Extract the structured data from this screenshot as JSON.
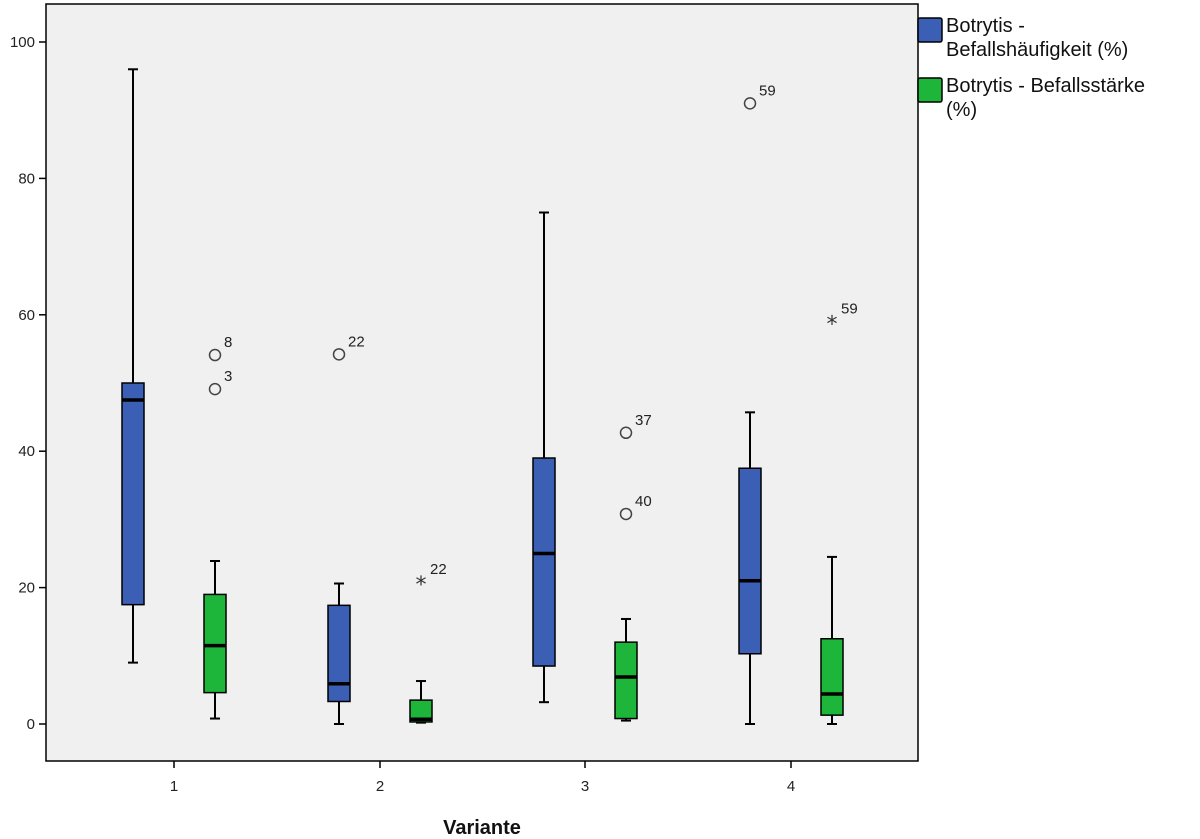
{
  "chart_data": {
    "type": "boxplot",
    "title": "",
    "xlabel": "Variante",
    "ylabel": "",
    "ylim": [
      -5,
      105
    ],
    "yticks": [
      0,
      20,
      40,
      60,
      80,
      100
    ],
    "categories": [
      "1",
      "2",
      "3",
      "4"
    ],
    "legend_position": "right-top",
    "series": [
      {
        "name": "Botrytis - Befallshäufigkeit (%)",
        "legend_lines": [
          "Botrytis -",
          "Befallshäufigkeit (%)"
        ],
        "color": "#3A5FB4",
        "boxes": [
          {
            "category": "1",
            "whisker_low": 9,
            "q1": 17.5,
            "median": 47.5,
            "q3": 50,
            "whisker_high": 96,
            "outliers": []
          },
          {
            "category": "2",
            "whisker_low": 0,
            "q1": 3.3,
            "median": 5.9,
            "q3": 17.4,
            "whisker_high": 20.6,
            "outliers": [
              {
                "value": 54.2,
                "label": "22",
                "marker": "circle"
              }
            ]
          },
          {
            "category": "3",
            "whisker_low": 3.2,
            "q1": 8.5,
            "median": 25,
            "q3": 39,
            "whisker_high": 75,
            "outliers": []
          },
          {
            "category": "4",
            "whisker_low": 0,
            "q1": 10.3,
            "median": 21,
            "q3": 37.5,
            "whisker_high": 45.7,
            "outliers": [
              {
                "value": 91,
                "label": "59",
                "marker": "circle"
              }
            ]
          }
        ]
      },
      {
        "name": "Botrytis - Befallsstärke (%)",
        "legend_lines": [
          "Botrytis - Befallsstärke",
          "(%)"
        ],
        "color": "#1DB53A",
        "boxes": [
          {
            "category": "1",
            "whisker_low": 0.8,
            "q1": 4.6,
            "median": 11.5,
            "q3": 19,
            "whisker_high": 23.9,
            "outliers": [
              {
                "value": 54.1,
                "label": "8",
                "marker": "circle"
              },
              {
                "value": 49.1,
                "label": "3",
                "marker": "circle"
              }
            ]
          },
          {
            "category": "2",
            "whisker_low": 0.2,
            "q1": 0.3,
            "median": 0.7,
            "q3": 3.5,
            "whisker_high": 6.3,
            "outliers": [
              {
                "value": 20.8,
                "label": "22",
                "marker": "star"
              }
            ]
          },
          {
            "category": "3",
            "whisker_low": 0.5,
            "q1": 0.8,
            "median": 6.9,
            "q3": 12,
            "whisker_high": 15.4,
            "outliers": [
              {
                "value": 42.7,
                "label": "37",
                "marker": "circle"
              },
              {
                "value": 30.8,
                "label": "40",
                "marker": "circle"
              }
            ]
          },
          {
            "category": "4",
            "whisker_low": 0,
            "q1": 1.3,
            "median": 4.4,
            "q3": 12.5,
            "whisker_high": 24.5,
            "outliers": [
              {
                "value": 59,
                "label": "59",
                "marker": "star"
              }
            ]
          }
        ]
      }
    ]
  }
}
